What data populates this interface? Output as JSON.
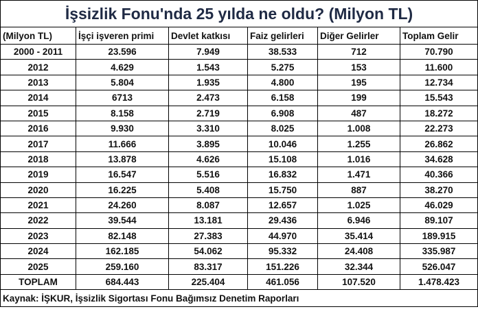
{
  "title": "İşsizlik Fonu'nda 25 yılda ne oldu? (Milyon TL)",
  "table": {
    "header": [
      "(Milyon TL)",
      "İşçi işveren primi",
      "Devlet katkısı",
      "Faiz gelirleri",
      "Diğer Gelirler",
      "Toplam Gelir"
    ],
    "rows": [
      [
        "2000 - 2011",
        "23.596",
        "7.949",
        "38.533",
        "712",
        "70.790"
      ],
      [
        "2012",
        "4.629",
        "1.543",
        "5.275",
        "153",
        "11.600"
      ],
      [
        "2013",
        "5.804",
        "1.935",
        "4.800",
        "195",
        "12.734"
      ],
      [
        "2014",
        "6713",
        "2.473",
        "6.158",
        "199",
        "15.543"
      ],
      [
        "2015",
        "8.158",
        "2.719",
        "6.908",
        "487",
        "18.272"
      ],
      [
        "2016",
        "9.930",
        "3.310",
        "8.025",
        "1.008",
        "22.273"
      ],
      [
        "2017",
        "11.666",
        "3.895",
        "10.046",
        "1.255",
        "26.862"
      ],
      [
        "2018",
        "13.878",
        "4.626",
        "15.108",
        "1.016",
        "34.628"
      ],
      [
        "2019",
        "16.547",
        "5.516",
        "16.832",
        "1.471",
        "40.366"
      ],
      [
        "2020",
        "16.225",
        "5.408",
        "15.750",
        "887",
        "38.270"
      ],
      [
        "2021",
        "24.260",
        "8.087",
        "12.657",
        "1.025",
        "46.029"
      ],
      [
        "2022",
        "39.544",
        "13.181",
        "29.436",
        "6.946",
        "89.107"
      ],
      [
        "2023",
        "82.148",
        "27.383",
        "44.970",
        "35.414",
        "189.915"
      ],
      [
        "2024",
        "162.185",
        "54.062",
        "95.332",
        "24.408",
        "335.987"
      ],
      [
        "2025",
        "259.160",
        "83.317",
        "151.226",
        "32.344",
        "526.047"
      ],
      [
        "TOPLAM",
        "684.443",
        "225.404",
        "461.056",
        "107.520",
        "1.478.423"
      ]
    ]
  },
  "source": "Kaynak: İŞKUR, İşsizlik Sigortası Fonu Bağımsız Denetim Raporları"
}
